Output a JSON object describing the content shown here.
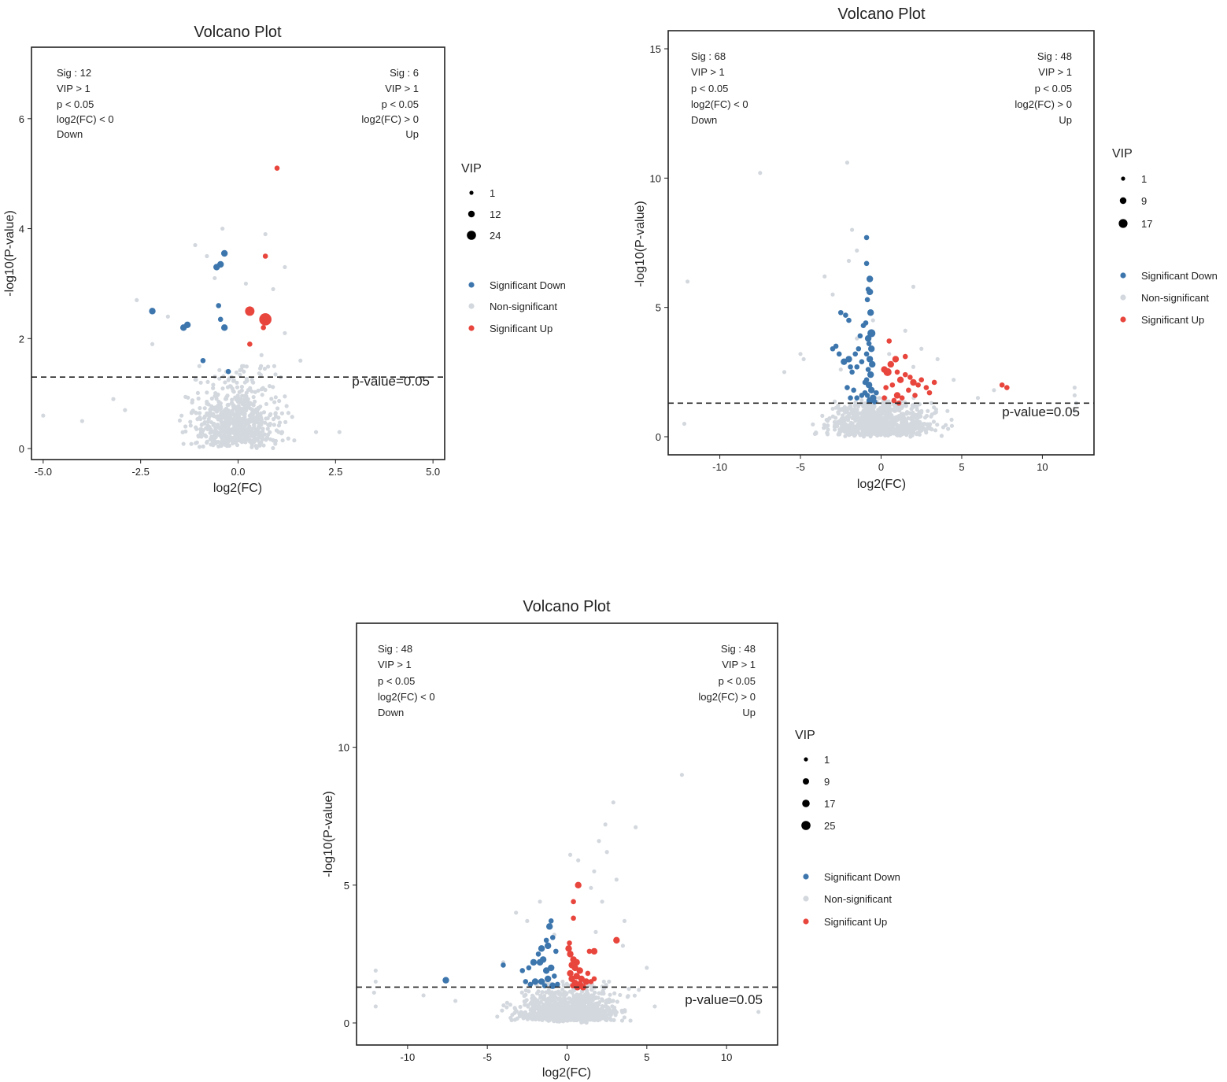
{
  "chart_data": [
    {
      "type": "scatter",
      "subtype": "volcano",
      "title": "Volcano Plot",
      "xlabel": "log2(FC)",
      "ylabel": "-log10(P-value)",
      "xlim": [
        -5.3,
        5.3
      ],
      "ylim": [
        -0.2,
        7.3
      ],
      "xticks": [
        "-5.0",
        "-2.5",
        "0.0",
        "2.5",
        "5.0"
      ],
      "xtick_values": [
        -5,
        -2.5,
        0,
        2.5,
        5
      ],
      "yticks": [
        "0",
        "2",
        "4",
        "6"
      ],
      "ytick_values": [
        0,
        2,
        4,
        6
      ],
      "threshold": {
        "value": 1.3,
        "label": "p-value=0.05"
      },
      "annot_left": [
        "Sig : 12",
        "VIP > 1",
        "p < 0.05",
        "log2(FC) < 0",
        "Down"
      ],
      "annot_right": [
        "Sig : 6",
        "VIP > 1",
        "p < 0.05",
        "log2(FC) > 0",
        "Up"
      ],
      "legend_vip_title": "VIP",
      "legend_vip": [
        "1",
        "12",
        "24"
      ],
      "legend_groups": [
        "Significant Down",
        "Non-significant",
        "Significant Up"
      ],
      "colors": {
        "down": "#3d76ad",
        "ns": "#d3d8de",
        "up": "#e8453c"
      },
      "ns_spread": {
        "sx": 0.55,
        "ymax": 1.3,
        "count": 700
      },
      "ns_points": [
        [
          -5.0,
          0.6
        ],
        [
          -4.0,
          0.5
        ],
        [
          -3.2,
          0.9
        ],
        [
          -2.9,
          0.7
        ],
        [
          2.0,
          0.3
        ],
        [
          2.6,
          0.3
        ],
        [
          -2.6,
          2.7
        ],
        [
          -1.1,
          3.7
        ],
        [
          -0.8,
          3.5
        ],
        [
          0.7,
          3.9
        ],
        [
          1.2,
          3.3
        ],
        [
          -0.4,
          4.0
        ],
        [
          -0.6,
          3.1
        ],
        [
          0.9,
          2.9
        ],
        [
          1.6,
          1.6
        ],
        [
          -1.8,
          2.4
        ],
        [
          -2.2,
          1.9
        ],
        [
          0.2,
          3.0
        ],
        [
          0.6,
          1.7
        ],
        [
          1.2,
          2.1
        ]
      ],
      "down_points": [
        [
          -2.2,
          2.5,
          3
        ],
        [
          -1.4,
          2.2,
          3
        ],
        [
          -1.3,
          2.25,
          3
        ],
        [
          -0.9,
          1.6,
          2
        ],
        [
          -0.55,
          3.3,
          3
        ],
        [
          -0.45,
          3.35,
          3
        ],
        [
          -0.35,
          3.55,
          3
        ],
        [
          -0.5,
          2.6,
          2
        ],
        [
          -0.35,
          2.2,
          3
        ],
        [
          -0.45,
          2.35,
          2
        ],
        [
          -0.25,
          1.4,
          2
        ]
      ],
      "up_points": [
        [
          1.0,
          5.1,
          2
        ],
        [
          0.7,
          3.5,
          2
        ],
        [
          0.3,
          2.5,
          5
        ],
        [
          0.7,
          2.35,
          7
        ],
        [
          0.65,
          2.2,
          2
        ],
        [
          0.3,
          1.9,
          2
        ]
      ]
    },
    {
      "type": "scatter",
      "subtype": "volcano",
      "title": "Volcano Plot",
      "xlabel": "log2(FC)",
      "ylabel": "-log10(P-value)",
      "xlim": [
        -13.2,
        13.2
      ],
      "ylim": [
        -0.7,
        15.7
      ],
      "xticks": [
        "-10",
        "-5",
        "0",
        "5",
        "10"
      ],
      "xtick_values": [
        -10,
        -5,
        0,
        5,
        10
      ],
      "yticks": [
        "0",
        "5",
        "10",
        "15"
      ],
      "ytick_values": [
        0,
        5,
        10,
        15
      ],
      "threshold": {
        "value": 1.3,
        "label": "p-value=0.05"
      },
      "annot_left": [
        "Sig : 68",
        "VIP > 1",
        "p < 0.05",
        "log2(FC) < 0",
        "Down"
      ],
      "annot_right": [
        "Sig : 48",
        "VIP > 1",
        "p < 0.05",
        "log2(FC) > 0",
        "Up"
      ],
      "legend_vip_title": "VIP",
      "legend_vip": [
        "1",
        "9",
        "17"
      ],
      "legend_groups": [
        "Significant Down",
        "Non-significant",
        "Significant Up"
      ],
      "colors": {
        "down": "#3d76ad",
        "ns": "#d3d8de",
        "up": "#e8453c"
      },
      "ns_spread": {
        "sx": 1.6,
        "ymax": 1.3,
        "count": 850
      },
      "ns_points": [
        [
          -7.5,
          10.2
        ],
        [
          -2.1,
          10.6
        ],
        [
          -12.0,
          6.0
        ],
        [
          -12.2,
          0.5
        ],
        [
          -1.8,
          8.0
        ],
        [
          -1.5,
          7.2
        ],
        [
          -2.0,
          6.8
        ],
        [
          -3.5,
          6.2
        ],
        [
          -3.0,
          5.5
        ],
        [
          -0.5,
          4.5
        ],
        [
          0.5,
          3.2
        ],
        [
          2.0,
          5.8
        ],
        [
          1.5,
          4.1
        ],
        [
          2.5,
          3.4
        ],
        [
          -4.8,
          3.0
        ],
        [
          -5.0,
          3.2
        ],
        [
          -6.0,
          2.5
        ],
        [
          3.5,
          3.0
        ],
        [
          4.5,
          2.2
        ],
        [
          7.0,
          1.8
        ],
        [
          6.0,
          1.5
        ],
        [
          12.0,
          1.9
        ],
        [
          12.0,
          1.6
        ],
        [
          12.1,
          1.3
        ],
        [
          12.0,
          1.0
        ],
        [
          -1.5,
          3.8
        ],
        [
          -2.5,
          2.6
        ],
        [
          2.0,
          2.7
        ]
      ],
      "down_points": [
        [
          -0.9,
          7.7,
          2
        ],
        [
          -0.9,
          6.7,
          2
        ],
        [
          -0.7,
          6.1,
          3
        ],
        [
          -0.8,
          5.7,
          2
        ],
        [
          -0.7,
          5.6,
          3
        ],
        [
          -0.85,
          5.3,
          2
        ],
        [
          -0.65,
          4.8,
          3
        ],
        [
          -0.95,
          4.4,
          2
        ],
        [
          -0.6,
          4.0,
          4
        ],
        [
          -0.8,
          3.8,
          3
        ],
        [
          -0.75,
          3.6,
          2
        ],
        [
          -0.6,
          3.4,
          3
        ],
        [
          -0.9,
          3.2,
          2
        ],
        [
          -0.7,
          3.0,
          3
        ],
        [
          -0.55,
          2.8,
          3
        ],
        [
          -0.8,
          2.6,
          2
        ],
        [
          -0.65,
          2.4,
          3
        ],
        [
          -0.9,
          2.2,
          2
        ],
        [
          -0.75,
          2.0,
          3
        ],
        [
          -0.6,
          1.8,
          3
        ],
        [
          -0.85,
          1.6,
          2
        ],
        [
          -0.7,
          1.4,
          3
        ],
        [
          -0.5,
          1.5,
          3
        ],
        [
          -1.0,
          1.7,
          2
        ],
        [
          -1.2,
          2.9,
          2
        ],
        [
          -1.4,
          3.4,
          2
        ],
        [
          -1.6,
          3.2,
          2
        ],
        [
          -1.3,
          3.9,
          2
        ],
        [
          -1.1,
          4.3,
          2
        ],
        [
          -1.5,
          2.7,
          2
        ],
        [
          -1.8,
          2.5,
          2
        ],
        [
          -2.0,
          4.5,
          2
        ],
        [
          -2.2,
          4.7,
          2
        ],
        [
          -2.5,
          4.8,
          2
        ],
        [
          -2.8,
          3.5,
          2
        ],
        [
          -3.0,
          3.4,
          2
        ],
        [
          -2.0,
          3.0,
          3
        ],
        [
          -2.3,
          2.9,
          3
        ],
        [
          -1.9,
          2.7,
          2
        ],
        [
          -1.7,
          1.8,
          2
        ],
        [
          -2.1,
          1.9,
          2
        ],
        [
          -1.9,
          1.5,
          2
        ],
        [
          -1.5,
          1.5,
          2
        ],
        [
          -1.2,
          1.6,
          2
        ],
        [
          -0.4,
          1.35,
          2
        ],
        [
          -0.3,
          1.7,
          2
        ],
        [
          -2.6,
          3.2,
          2
        ],
        [
          -1.0,
          2.1,
          2
        ]
      ],
      "up_points": [
        [
          0.2,
          2.6,
          3
        ],
        [
          0.4,
          2.5,
          4
        ],
        [
          0.6,
          2.8,
          3
        ],
        [
          0.9,
          3.0,
          3
        ],
        [
          0.5,
          3.7,
          2
        ],
        [
          1.5,
          3.1,
          2
        ],
        [
          1.0,
          2.5,
          2
        ],
        [
          1.2,
          2.2,
          3
        ],
        [
          1.5,
          2.4,
          2
        ],
        [
          1.8,
          2.3,
          2
        ],
        [
          2.0,
          2.1,
          3
        ],
        [
          2.3,
          2.0,
          2
        ],
        [
          2.5,
          2.2,
          2
        ],
        [
          2.8,
          1.9,
          2
        ],
        [
          3.3,
          2.1,
          2
        ],
        [
          1.0,
          1.6,
          3
        ],
        [
          0.8,
          1.4,
          2
        ],
        [
          1.3,
          1.5,
          2
        ],
        [
          1.7,
          1.8,
          2
        ],
        [
          0.7,
          2.0,
          2
        ],
        [
          0.3,
          1.9,
          2
        ],
        [
          0.2,
          1.5,
          2
        ],
        [
          1.1,
          1.3,
          2
        ],
        [
          7.5,
          2.0,
          2
        ],
        [
          7.8,
          1.9,
          2
        ],
        [
          3.0,
          1.7,
          2
        ],
        [
          2.1,
          1.6,
          2
        ]
      ]
    },
    {
      "type": "scatter",
      "subtype": "volcano",
      "title": "Volcano Plot",
      "xlabel": "log2(FC)",
      "ylabel": "-log10(P-value)",
      "xlim": [
        -13.2,
        13.2
      ],
      "ylim": [
        -0.8,
        14.5
      ],
      "xticks": [
        "-10",
        "-5",
        "0",
        "5",
        "10"
      ],
      "xtick_values": [
        -10,
        -5,
        0,
        5,
        10
      ],
      "yticks": [
        "0",
        "5",
        "10"
      ],
      "ytick_values": [
        0,
        5,
        10
      ],
      "threshold": {
        "value": 1.3,
        "label": "p-value=0.05"
      },
      "annot_left": [
        "Sig : 48",
        "VIP > 1",
        "p < 0.05",
        "log2(FC) < 0",
        "Down"
      ],
      "annot_right": [
        "Sig : 48",
        "VIP > 1",
        "p < 0.05",
        "log2(FC) > 0",
        "Up"
      ],
      "legend_vip_title": "VIP",
      "legend_vip": [
        "1",
        "9",
        "17",
        "25"
      ],
      "legend_groups": [
        "Significant Down",
        "Non-significant",
        "Significant Up"
      ],
      "colors": {
        "down": "#3d76ad",
        "ns": "#d3d8de",
        "up": "#e8453c"
      },
      "ns_spread": {
        "sx": 1.5,
        "ymax": 1.3,
        "count": 850
      },
      "ns_points": [
        [
          7.2,
          9.0
        ],
        [
          2.9,
          8.0
        ],
        [
          2.4,
          7.2
        ],
        [
          4.3,
          7.1
        ],
        [
          2.0,
          6.6
        ],
        [
          2.5,
          6.2
        ],
        [
          0.2,
          6.1
        ],
        [
          0.7,
          5.9
        ],
        [
          1.7,
          5.5
        ],
        [
          3.1,
          5.2
        ],
        [
          1.5,
          4.9
        ],
        [
          2.2,
          4.4
        ],
        [
          -1.7,
          4.4
        ],
        [
          -2.5,
          3.7
        ],
        [
          3.6,
          3.7
        ],
        [
          -3.2,
          4.0
        ],
        [
          -0.8,
          3.2
        ],
        [
          1.8,
          3.3
        ],
        [
          -12.0,
          1.9
        ],
        [
          -12.0,
          1.5
        ],
        [
          -12.1,
          1.1
        ],
        [
          -12.0,
          0.6
        ],
        [
          12.0,
          0.4
        ],
        [
          -9.0,
          1.0
        ],
        [
          -7.0,
          0.8
        ],
        [
          5.5,
          0.6
        ],
        [
          4.5,
          1.2
        ],
        [
          5.0,
          2.0
        ],
        [
          -4.0,
          2.2
        ],
        [
          3.5,
          2.8
        ]
      ],
      "down_points": [
        [
          -7.6,
          1.55,
          3
        ],
        [
          -4.0,
          2.1,
          2
        ],
        [
          -1.0,
          3.7,
          2
        ],
        [
          -1.1,
          3.5,
          3
        ],
        [
          -0.9,
          3.1,
          2
        ],
        [
          -1.3,
          3.0,
          2
        ],
        [
          -1.2,
          2.8,
          3
        ],
        [
          -1.6,
          2.7,
          3
        ],
        [
          -1.8,
          2.5,
          2
        ],
        [
          -1.5,
          2.3,
          3
        ],
        [
          -1.7,
          2.2,
          3
        ],
        [
          -2.1,
          2.2,
          3
        ],
        [
          -2.4,
          2.0,
          2
        ],
        [
          -2.8,
          1.9,
          2
        ],
        [
          -1.3,
          1.9,
          3
        ],
        [
          -1.0,
          2.0,
          3
        ],
        [
          -0.8,
          1.7,
          2
        ],
        [
          -1.2,
          1.6,
          3
        ],
        [
          -1.6,
          1.5,
          3
        ],
        [
          -2.0,
          1.5,
          3
        ],
        [
          -2.3,
          1.4,
          2
        ],
        [
          -2.6,
          1.5,
          2
        ],
        [
          -0.6,
          1.4,
          2
        ],
        [
          -0.9,
          1.35,
          3
        ],
        [
          -1.4,
          1.35,
          2
        ],
        [
          -0.7,
          2.6,
          2
        ]
      ],
      "up_points": [
        [
          0.7,
          5.0,
          3
        ],
        [
          0.4,
          4.4,
          2
        ],
        [
          0.4,
          3.8,
          2
        ],
        [
          3.1,
          3.0,
          3
        ],
        [
          1.4,
          2.6,
          2
        ],
        [
          1.7,
          2.6,
          3
        ],
        [
          0.1,
          2.7,
          3
        ],
        [
          0.2,
          2.5,
          3
        ],
        [
          0.4,
          2.3,
          3
        ],
        [
          0.6,
          2.2,
          3
        ],
        [
          0.3,
          2.1,
          3
        ],
        [
          0.5,
          2.0,
          3
        ],
        [
          0.8,
          1.9,
          3
        ],
        [
          0.2,
          1.8,
          3
        ],
        [
          0.6,
          1.7,
          3
        ],
        [
          0.9,
          1.6,
          3
        ],
        [
          0.3,
          1.6,
          3
        ],
        [
          1.2,
          1.5,
          3
        ],
        [
          1.5,
          1.5,
          2
        ],
        [
          1.7,
          1.6,
          2
        ],
        [
          0.5,
          1.45,
          3
        ],
        [
          0.8,
          1.4,
          3
        ],
        [
          0.65,
          1.3,
          3
        ],
        [
          1.0,
          1.3,
          3
        ],
        [
          0.35,
          1.35,
          2
        ],
        [
          1.3,
          1.8,
          2
        ],
        [
          0.15,
          2.9,
          2
        ]
      ]
    }
  ]
}
